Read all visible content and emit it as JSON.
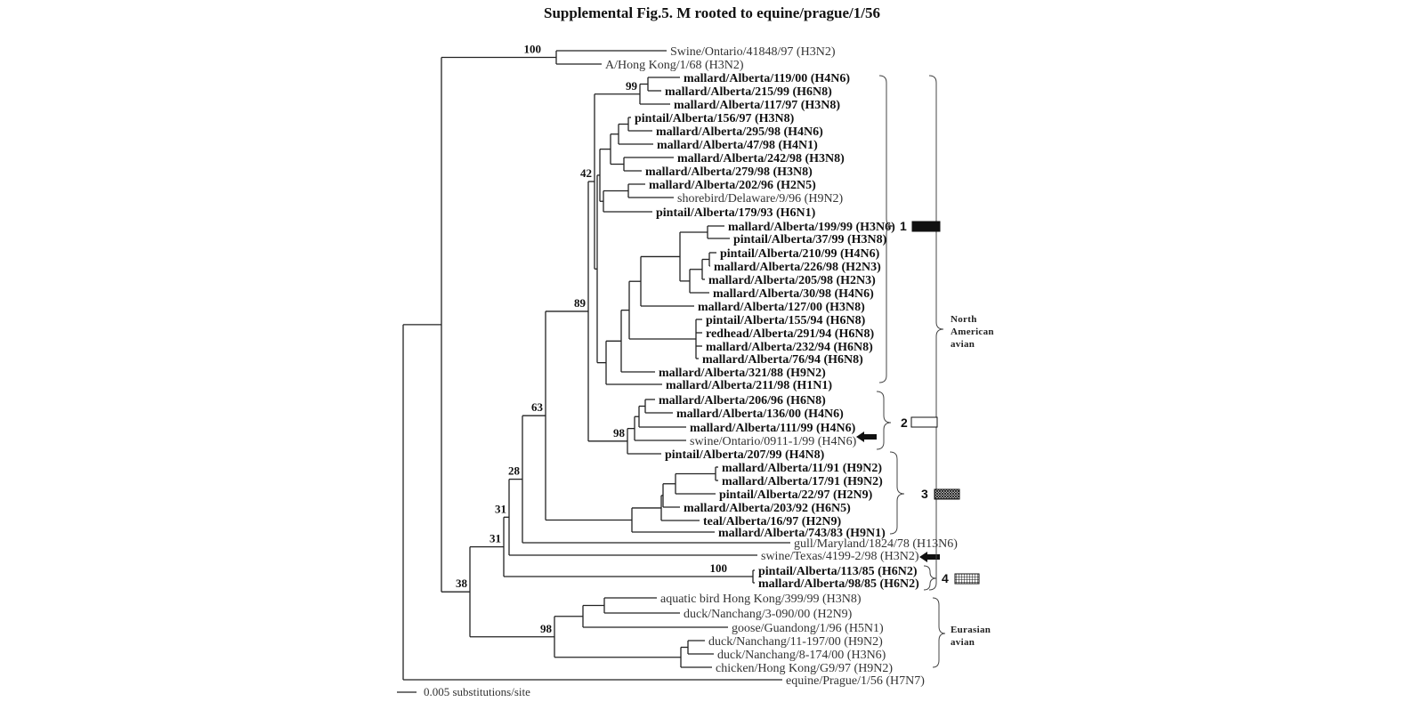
{
  "title": "Supplemental  Fig.5.   M rooted to equine/prague/1/56",
  "taxa": [
    {
      "name": "Swine/Ontario/41848/97 (H3N2)",
      "bold": false
    },
    {
      "name": "A/Hong Kong/1/68 (H3N2)",
      "bold": false
    },
    {
      "name": "mallard/Alberta/119/00 (H4N6)",
      "bold": true
    },
    {
      "name": "mallard/Alberta/215/99 (H6N8)",
      "bold": true
    },
    {
      "name": "mallard/Alberta/117/97 (H3N8)",
      "bold": true
    },
    {
      "name": "pintail/Alberta/156/97 (H3N8)",
      "bold": true
    },
    {
      "name": "mallard/Alberta/295/98 (H4N6)",
      "bold": true
    },
    {
      "name": "mallard/Alberta/47/98 (H4N1)",
      "bold": true
    },
    {
      "name": "mallard/Alberta/242/98 (H3N8)",
      "bold": true
    },
    {
      "name": "mallard/Alberta/279/98 (H3N8)",
      "bold": true
    },
    {
      "name": "mallard/Alberta/202/96 (H2N5)",
      "bold": true
    },
    {
      "name": "shorebird/Delaware/9/96 (H9N2)",
      "bold": false
    },
    {
      "name": "pintail/Alberta/179/93 (H6N1)",
      "bold": true
    },
    {
      "name": "mallard/Alberta/199/99 (H3N6)",
      "bold": true
    },
    {
      "name": "pintail/Alberta/37/99 (H3N8)",
      "bold": true
    },
    {
      "name": "pintail/Alberta/210/99 (H4N6)",
      "bold": true
    },
    {
      "name": "mallard/Alberta/226/98 (H2N3)",
      "bold": true
    },
    {
      "name": "mallard/Alberta/205/98 (H2N3)",
      "bold": true
    },
    {
      "name": "mallard/Alberta/30/98 (H4N6)",
      "bold": true
    },
    {
      "name": "mallard/Alberta/127/00 (H3N8)",
      "bold": true
    },
    {
      "name": "pintail/Alberta/155/94 (H6N8)",
      "bold": true
    },
    {
      "name": "redhead/Alberta/291/94 (H6N8)",
      "bold": true
    },
    {
      "name": "mallard/Alberta/232/94 (H6N8)",
      "bold": true
    },
    {
      "name": "mallard/Alberta/76/94 (H6N8)",
      "bold": true
    },
    {
      "name": "mallard/Alberta/321/88 (H9N2)",
      "bold": true
    },
    {
      "name": "mallard/Alberta/211/98 (H1N1)",
      "bold": true
    },
    {
      "name": "mallard/Alberta/206/96 (H6N8)",
      "bold": true
    },
    {
      "name": "mallard/Alberta/136/00 (H4N6)",
      "bold": true
    },
    {
      "name": "mallard/Alberta/111/99 (H4N6)",
      "bold": true
    },
    {
      "name": "swine/Ontario/0911-1/99 (H4N6)",
      "bold": false,
      "arrow": true
    },
    {
      "name": "pintail/Alberta/207/99 (H4N8)",
      "bold": true
    },
    {
      "name": "mallard/Alberta/11/91 (H9N2)",
      "bold": true
    },
    {
      "name": "mallard/Alberta/17/91 (H9N2)",
      "bold": true
    },
    {
      "name": "pintail/Alberta/22/97 (H2N9)",
      "bold": true
    },
    {
      "name": "mallard/Alberta/203/92 (H6N5)",
      "bold": true
    },
    {
      "name": "teal/Alberta/16/97 (H2N9)",
      "bold": true
    },
    {
      "name": "mallard/Alberta/743/83 (H9N1)",
      "bold": true
    },
    {
      "name": "gull/Maryland/1824/78 (H13N6)",
      "bold": false
    },
    {
      "name": "swine/Texas/4199-2/98 (H3N2)",
      "bold": false,
      "arrow": true
    },
    {
      "name": "pintail/Alberta/113/85 (H6N2)",
      "bold": true
    },
    {
      "name": "mallard/Alberta/98/85 (H6N2)",
      "bold": true
    },
    {
      "name": "aquatic bird Hong Kong/399/99 (H3N8)",
      "bold": false
    },
    {
      "name": "duck/Nanchang/3-090/00 (H2N9)",
      "bold": false
    },
    {
      "name": "goose/Guandong/1/96 (H5N1)",
      "bold": false
    },
    {
      "name": "duck/Nanchang/11-197/00 (H9N2)",
      "bold": false
    },
    {
      "name": "duck/Nanchang/8-174/00 (H3N6)",
      "bold": false
    },
    {
      "name": "chicken/Hong Kong/G9/97 (H9N2)",
      "bold": false
    },
    {
      "name": "equine/Prague/1/56 (H7N7)",
      "bold": false
    }
  ],
  "bootstrap": {
    "B": "100",
    "V": "99",
    "L": "42",
    "J": "89",
    "H": "63",
    "M": "98",
    "G": "28",
    "E": "31",
    "D": "31",
    "C": "38",
    "F": "100",
    "R": "98"
  },
  "clades": [
    {
      "label": "1",
      "pattern": "solid"
    },
    {
      "label": "2",
      "pattern": "empty"
    },
    {
      "label": "3",
      "pattern": "crosshatch"
    },
    {
      "label": "4",
      "pattern": "grid"
    }
  ],
  "groups": {
    "north_american": [
      "North",
      "American",
      "avian"
    ],
    "eurasian": [
      "Eurasian",
      "avian"
    ]
  },
  "scale_bar": "0.005 substitutions/site"
}
